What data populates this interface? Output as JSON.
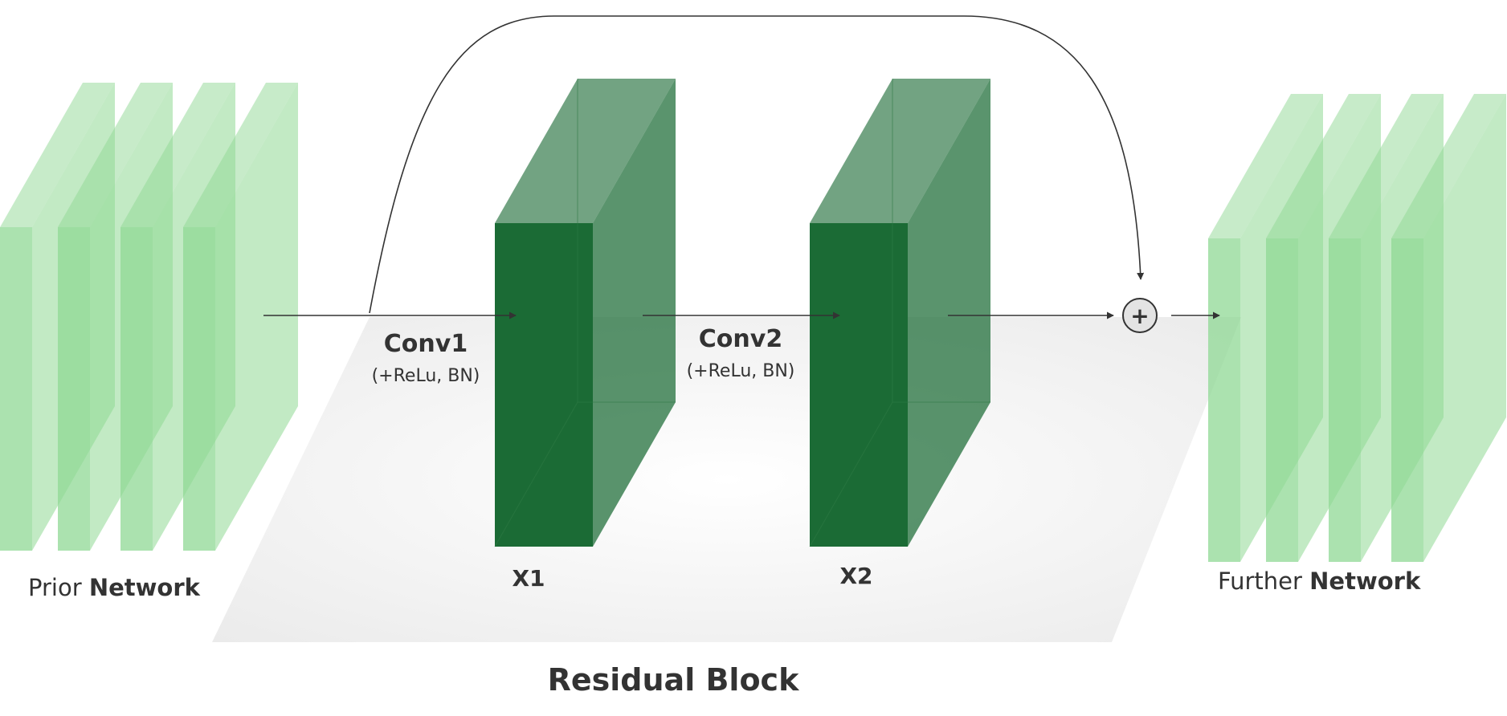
{
  "prior": {
    "label_normal": "Prior ",
    "label_bold": "Network"
  },
  "further": {
    "label_normal": "Further ",
    "label_bold": "Network"
  },
  "conv1": {
    "title": "Conv1",
    "subtitle": "(+ReLu, BN)"
  },
  "conv2": {
    "title": "Conv2",
    "subtitle": "(+ReLu, BN)"
  },
  "x1": {
    "label": "X1"
  },
  "x2": {
    "label": "X2"
  },
  "block": {
    "title": "Residual Block"
  },
  "add_symbol": "+",
  "colors": {
    "light_green": "#8fd894",
    "dark_green": "#1b6b35",
    "text": "#333333",
    "platform": "#f0f0f0"
  }
}
